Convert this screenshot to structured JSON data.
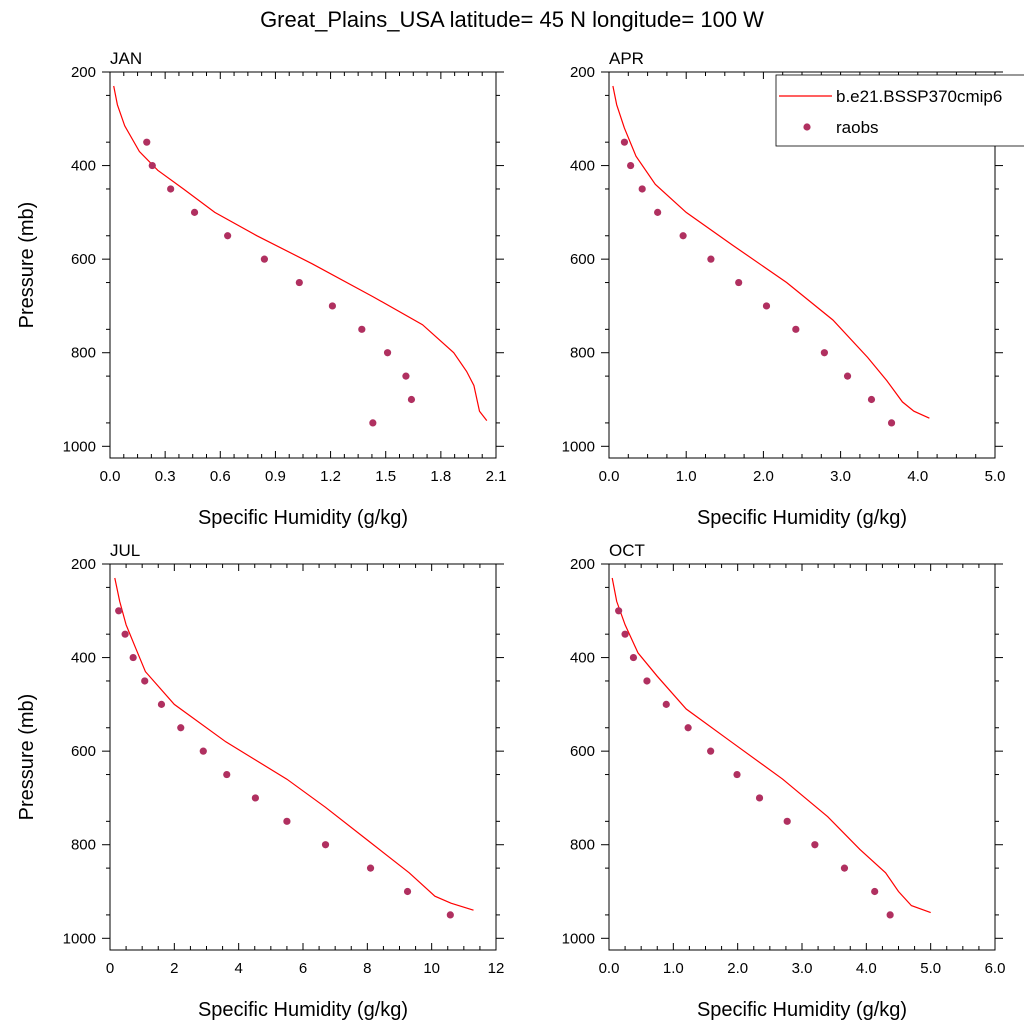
{
  "figure": {
    "title": "Great_Plains_USA  latitude= 45 N longitude= 100 W"
  },
  "legend": {
    "model_label": "b.e21.BSSP370cmip6",
    "obs_label": "raobs"
  },
  "colors": {
    "model_line": "#ff0000",
    "obs_marker": "#b03060",
    "axis": "#000000",
    "background": "#ffffff"
  },
  "chart_data": [
    {
      "type": "line",
      "panel": "JAN",
      "xlabel": "Specific Humidity (g/kg)",
      "ylabel": "Pressure (mb)",
      "xlim": [
        0,
        2.1
      ],
      "ylim": [
        200,
        1025
      ],
      "y_reversed": true,
      "xticks": [
        "0.0",
        "0.3",
        "0.6",
        "0.9",
        "1.2",
        "1.5",
        "1.8",
        "2.1"
      ],
      "xtick_values": [
        0,
        0.3,
        0.6,
        0.9,
        1.2,
        1.5,
        1.8,
        2.1
      ],
      "yticks": [
        "200",
        "400",
        "600",
        "800",
        "1000"
      ],
      "ytick_values": [
        200,
        400,
        600,
        800,
        1000
      ],
      "series": [
        {
          "name": "b.e21.BSSP370cmip6",
          "style": "line",
          "x": [
            0.02,
            0.04,
            0.08,
            0.16,
            0.26,
            0.4,
            0.57,
            0.8,
            1.1,
            1.43,
            1.7,
            1.87,
            1.94,
            1.98,
            2.01,
            2.05
          ],
          "y": [
            230,
            270,
            315,
            370,
            410,
            450,
            500,
            550,
            610,
            680,
            740,
            800,
            840,
            870,
            925,
            945
          ]
        },
        {
          "name": "raobs",
          "style": "markers",
          "x": [
            0.2,
            0.23,
            0.33,
            0.46,
            0.64,
            0.84,
            1.03,
            1.21,
            1.37,
            1.51,
            1.61,
            1.64,
            1.43
          ],
          "y": [
            350,
            400,
            450,
            500,
            550,
            600,
            650,
            700,
            750,
            800,
            850,
            900,
            950
          ]
        }
      ],
      "show_legend": false
    },
    {
      "type": "line",
      "panel": "APR",
      "xlabel": "Specific Humidity (g/kg)",
      "ylabel": "",
      "xlim": [
        0,
        5.0
      ],
      "ylim": [
        200,
        1025
      ],
      "y_reversed": true,
      "xticks": [
        "0.0",
        "1.0",
        "2.0",
        "3.0",
        "4.0",
        "5.0"
      ],
      "xtick_values": [
        0,
        1,
        2,
        3,
        4,
        5
      ],
      "yticks": [
        "200",
        "400",
        "600",
        "800",
        "1000"
      ],
      "ytick_values": [
        200,
        400,
        600,
        800,
        1000
      ],
      "series": [
        {
          "name": "b.e21.BSSP370cmip6",
          "style": "line",
          "x": [
            0.05,
            0.1,
            0.2,
            0.35,
            0.6,
            1.0,
            1.6,
            2.3,
            2.9,
            3.35,
            3.6,
            3.8,
            3.95,
            4.15
          ],
          "y": [
            230,
            270,
            320,
            380,
            440,
            500,
            570,
            650,
            730,
            810,
            860,
            905,
            925,
            940
          ]
        },
        {
          "name": "raobs",
          "style": "markers",
          "x": [
            0.2,
            0.28,
            0.43,
            0.63,
            0.96,
            1.32,
            1.68,
            2.04,
            2.42,
            2.79,
            3.09,
            3.4,
            3.66
          ],
          "y": [
            350,
            400,
            450,
            500,
            550,
            600,
            650,
            700,
            750,
            800,
            850,
            900,
            950
          ]
        }
      ],
      "show_legend": true
    },
    {
      "type": "line",
      "panel": "JUL",
      "xlabel": "Specific Humidity (g/kg)",
      "ylabel": "Pressure (mb)",
      "xlim": [
        0,
        12
      ],
      "ylim": [
        200,
        1025
      ],
      "y_reversed": true,
      "xticks": [
        "0",
        "2",
        "4",
        "6",
        "8",
        "10",
        "12"
      ],
      "xtick_values": [
        0,
        2,
        4,
        6,
        8,
        10,
        12
      ],
      "yticks": [
        "200",
        "400",
        "600",
        "800",
        "1000"
      ],
      "ytick_values": [
        200,
        400,
        600,
        800,
        1000
      ],
      "series": [
        {
          "name": "b.e21.BSSP370cmip6",
          "style": "line",
          "x": [
            0.15,
            0.3,
            0.5,
            0.8,
            1.1,
            2.0,
            3.6,
            5.5,
            6.7,
            8.0,
            9.3,
            10.1,
            10.6,
            11.3
          ],
          "y": [
            230,
            280,
            330,
            380,
            430,
            500,
            580,
            660,
            720,
            790,
            860,
            910,
            925,
            940
          ]
        },
        {
          "name": "raobs",
          "style": "markers",
          "x": [
            0.27,
            0.47,
            0.72,
            1.08,
            1.6,
            2.2,
            2.9,
            3.63,
            4.52,
            5.5,
            6.7,
            8.1,
            9.25,
            10.58
          ],
          "y": [
            300,
            350,
            400,
            450,
            500,
            550,
            600,
            650,
            700,
            750,
            800,
            850,
            900,
            950
          ]
        }
      ],
      "show_legend": false
    },
    {
      "type": "line",
      "panel": "OCT",
      "xlabel": "Specific Humidity (g/kg)",
      "ylabel": "",
      "xlim": [
        0,
        6.0
      ],
      "ylim": [
        200,
        1025
      ],
      "y_reversed": true,
      "xticks": [
        "0.0",
        "1.0",
        "2.0",
        "3.0",
        "4.0",
        "5.0",
        "6.0"
      ],
      "xtick_values": [
        0,
        1,
        2,
        3,
        4,
        5,
        6
      ],
      "yticks": [
        "200",
        "400",
        "600",
        "800",
        "1000"
      ],
      "ytick_values": [
        200,
        400,
        600,
        800,
        1000
      ],
      "series": [
        {
          "name": "b.e21.BSSP370cmip6",
          "style": "line",
          "x": [
            0.05,
            0.12,
            0.25,
            0.45,
            0.75,
            1.2,
            1.9,
            2.7,
            3.4,
            3.9,
            4.3,
            4.5,
            4.7,
            5.0
          ],
          "y": [
            230,
            280,
            330,
            390,
            440,
            510,
            580,
            660,
            740,
            810,
            860,
            900,
            930,
            945
          ]
        },
        {
          "name": "raobs",
          "style": "markers",
          "x": [
            0.15,
            0.25,
            0.38,
            0.59,
            0.89,
            1.23,
            1.58,
            1.99,
            2.34,
            2.77,
            3.2,
            3.66,
            4.13,
            4.37
          ],
          "y": [
            300,
            350,
            400,
            450,
            500,
            550,
            600,
            650,
            700,
            750,
            800,
            850,
            900,
            950
          ]
        }
      ],
      "show_legend": false
    }
  ]
}
